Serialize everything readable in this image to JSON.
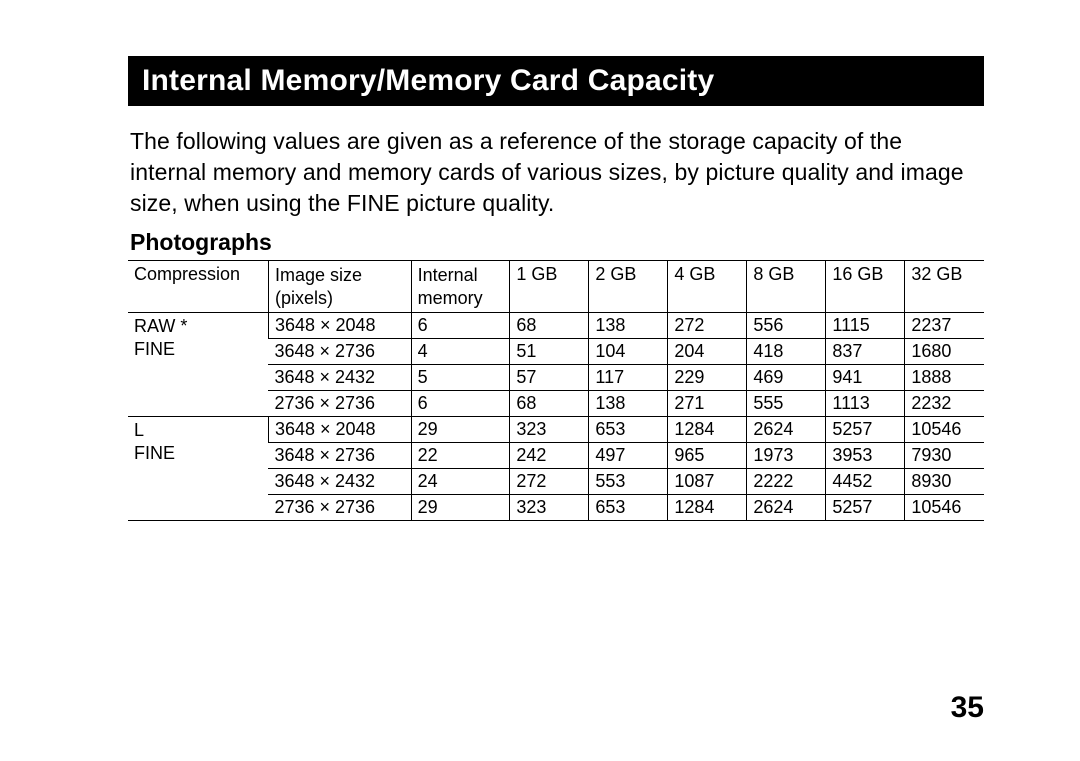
{
  "title": "Internal Memory/Memory Card Capacity",
  "intro": "The following values are given as a reference of the storage capacity of the internal memory and memory cards of various sizes, by picture quality and image size, when using the FINE picture quality.",
  "subhead": "Photographs",
  "page_number": "35",
  "table": {
    "columns": {
      "compression": "Compression",
      "image_size_l1": "Image size",
      "image_size_l2": "(pixels)",
      "internal_l1": "Internal",
      "internal_l2": "memory",
      "c1": "1 GB",
      "c2": "2 GB",
      "c4": "4 GB",
      "c8": "8 GB",
      "c16": "16 GB",
      "c32": "32 GB"
    },
    "groups": [
      {
        "label_lines": [
          "RAW *",
          "FINE"
        ],
        "rows": [
          {
            "size": "3648 × 2048",
            "internal": "6",
            "c1": "68",
            "c2": "138",
            "c4": "272",
            "c8": "556",
            "c16": "1115",
            "c32": "2237"
          },
          {
            "size": "3648 × 2736",
            "internal": "4",
            "c1": "51",
            "c2": "104",
            "c4": "204",
            "c8": "418",
            "c16": "837",
            "c32": "1680"
          },
          {
            "size": "3648 × 2432",
            "internal": "5",
            "c1": "57",
            "c2": "117",
            "c4": "229",
            "c8": "469",
            "c16": "941",
            "c32": "1888"
          },
          {
            "size": "2736 × 2736",
            "internal": "6",
            "c1": "68",
            "c2": "138",
            "c4": "271",
            "c8": "555",
            "c16": "1113",
            "c32": "2232"
          }
        ]
      },
      {
        "label_lines": [
          "L",
          "FINE"
        ],
        "rows": [
          {
            "size": "3648 × 2048",
            "internal": "29",
            "c1": "323",
            "c2": "653",
            "c4": "1284",
            "c8": "2624",
            "c16": "5257",
            "c32": "10546"
          },
          {
            "size": "3648 × 2736",
            "internal": "22",
            "c1": "242",
            "c2": "497",
            "c4": "965",
            "c8": "1973",
            "c16": "3953",
            "c32": "7930"
          },
          {
            "size": "3648 × 2432",
            "internal": "24",
            "c1": "272",
            "c2": "553",
            "c4": "1087",
            "c8": "2222",
            "c16": "4452",
            "c32": "8930"
          },
          {
            "size": "2736 × 2736",
            "internal": "29",
            "c1": "323",
            "c2": "653",
            "c4": "1284",
            "c8": "2624",
            "c16": "5257",
            "c32": "10546"
          }
        ]
      }
    ]
  }
}
